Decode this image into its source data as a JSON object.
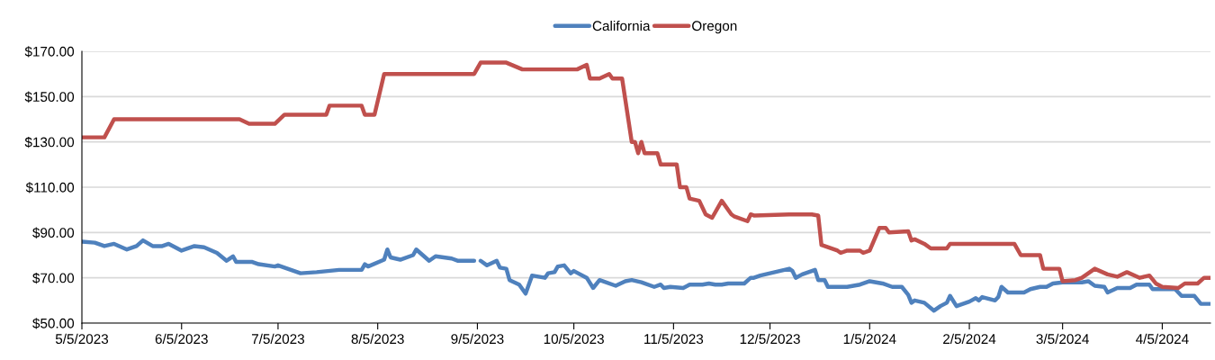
{
  "chart_data": {
    "type": "line",
    "xlim": [
      "2023-05-05",
      "2024-04-20"
    ],
    "xticks": [
      {
        "value": "2023-05-05",
        "label": "5/5/2023"
      },
      {
        "value": "2023-06-05",
        "label": "6/5/2023"
      },
      {
        "value": "2023-07-05",
        "label": "7/5/2023"
      },
      {
        "value": "2023-08-05",
        "label": "8/5/2023"
      },
      {
        "value": "2023-09-05",
        "label": "9/5/2023"
      },
      {
        "value": "2023-10-05",
        "label": "10/5/2023"
      },
      {
        "value": "2023-11-05",
        "label": "11/5/2023"
      },
      {
        "value": "2023-12-05",
        "label": "12/5/2023"
      },
      {
        "value": "2024-01-05",
        "label": "1/5/2024"
      },
      {
        "value": "2024-02-05",
        "label": "2/5/2024"
      },
      {
        "value": "2024-03-05",
        "label": "3/5/2024"
      },
      {
        "value": "2024-04-05",
        "label": "4/5/2024"
      }
    ],
    "ylim": [
      50,
      170
    ],
    "yticks": [
      {
        "value": 50,
        "label": "$50.00"
      },
      {
        "value": 70,
        "label": "$70.00"
      },
      {
        "value": 90,
        "label": "$90.00"
      },
      {
        "value": 110,
        "label": "$110.00"
      },
      {
        "value": 130,
        "label": "$130.00"
      },
      {
        "value": 150,
        "label": "$150.00"
      },
      {
        "value": 170,
        "label": "$170.00"
      }
    ],
    "grid": "y",
    "legend": "top",
    "marker": "none",
    "line_style": "solid",
    "series": [
      {
        "name": "California",
        "color": "#4f81bd",
        "x": [
          "2023-05-05",
          "2023-05-09",
          "2023-05-12",
          "2023-05-15",
          "2023-05-19",
          "2023-05-22",
          "2023-05-24",
          "2023-05-27",
          "2023-05-30",
          "2023-06-01",
          "2023-06-05",
          "2023-06-09",
          "2023-06-12",
          "2023-06-16",
          "2023-06-19",
          "2023-06-21",
          "2023-06-22",
          "2023-06-27",
          "2023-06-29",
          "2023-07-04",
          "2023-07-05",
          "2023-07-08",
          "2023-07-12",
          "2023-07-17",
          "2023-07-24",
          "2023-07-31",
          "2023-08-01",
          "2023-08-02",
          "2023-08-07",
          "2023-08-08",
          "2023-08-09",
          "2023-08-12",
          "2023-08-16",
          "2023-08-17",
          "2023-08-19",
          "2023-08-21",
          "2023-08-23",
          "2023-08-28",
          "2023-08-30",
          "2023-09-04",
          "2023-09-05",
          "2023-09-06",
          "2023-09-08",
          "2023-09-11",
          "2023-09-12",
          "2023-09-14",
          "2023-09-15",
          "2023-09-18",
          "2023-09-20",
          "2023-09-22",
          "2023-09-26",
          "2023-09-27",
          "2023-09-29",
          "2023-09-30",
          "2023-10-02",
          "2023-10-04",
          "2023-10-05",
          "2023-10-09",
          "2023-10-11",
          "2023-10-13",
          "2023-10-18",
          "2023-10-21",
          "2023-10-23",
          "2023-10-26",
          "2023-10-30",
          "2023-11-01",
          "2023-11-02",
          "2023-11-04",
          "2023-11-08",
          "2023-11-10",
          "2023-11-14",
          "2023-11-16",
          "2023-11-18",
          "2023-11-20",
          "2023-11-22",
          "2023-11-27",
          "2023-11-29",
          "2023-11-30",
          "2023-12-02",
          "2023-12-11",
          "2023-12-12",
          "2023-12-13",
          "2023-12-15",
          "2023-12-19",
          "2023-12-20",
          "2023-12-22",
          "2023-12-23",
          "2023-12-29",
          "2024-01-02",
          "2024-01-05",
          "2024-01-09",
          "2024-01-12",
          "2024-01-15",
          "2024-01-17",
          "2024-01-18",
          "2024-01-19",
          "2024-01-22",
          "2024-01-25",
          "2024-01-27",
          "2024-01-29",
          "2024-01-30",
          "2024-02-01",
          "2024-02-05",
          "2024-02-07",
          "2024-02-08",
          "2024-02-09",
          "2024-02-13",
          "2024-02-14",
          "2024-02-15",
          "2024-02-17",
          "2024-02-22",
          "2024-02-24",
          "2024-02-27",
          "2024-02-29",
          "2024-03-02",
          "2024-03-05",
          "2024-03-11",
          "2024-03-13",
          "2024-03-15",
          "2024-03-18",
          "2024-03-19",
          "2024-03-22",
          "2024-03-26",
          "2024-03-28",
          "2024-04-01",
          "2024-04-02",
          "2024-04-09",
          "2024-04-11",
          "2024-04-15",
          "2024-04-17",
          "2024-04-20"
        ],
        "values": [
          86,
          85.5,
          84,
          85,
          82.5,
          84,
          86.5,
          84,
          84,
          85,
          82,
          84,
          83.5,
          81,
          77.5,
          79.5,
          77,
          77,
          76,
          75,
          75.5,
          74,
          72,
          72.5,
          73.5,
          73.5,
          76,
          75,
          78,
          82.5,
          79,
          78,
          80,
          82.5,
          80,
          77.5,
          79.5,
          78.5,
          77.5,
          77.5,
          null,
          77.5,
          75.5,
          77.5,
          74.5,
          74,
          69,
          67,
          63,
          71,
          70,
          72,
          72.5,
          75,
          75.5,
          72,
          73,
          70,
          65.5,
          69,
          66.5,
          68.5,
          69,
          68,
          66,
          67,
          65.5,
          66,
          65.5,
          67,
          67,
          67.5,
          67,
          67,
          67.5,
          67.5,
          70,
          70,
          71,
          74,
          73,
          70,
          71.5,
          73.5,
          69,
          69,
          66,
          66,
          67,
          68.5,
          67.5,
          66,
          66,
          62.5,
          59,
          60,
          59,
          55.5,
          57.5,
          59,
          62,
          57.5,
          59.5,
          61,
          60,
          61.5,
          60,
          61.5,
          66,
          63.5,
          63.5,
          65,
          66,
          66,
          67.5,
          68,
          68,
          68.5,
          66.5,
          66,
          63.5,
          65.5,
          65.5,
          67,
          67,
          65,
          65,
          62,
          62,
          58.5,
          58.5
        ]
      },
      {
        "name": "Oregon",
        "color": "#c0504d",
        "x": [
          "2023-05-05",
          "2023-05-12",
          "2023-05-15",
          "2023-06-23",
          "2023-06-26",
          "2023-07-04",
          "2023-07-07",
          "2023-07-20",
          "2023-07-21",
          "2023-07-31",
          "2023-08-01",
          "2023-08-04",
          "2023-08-07",
          "2023-09-04",
          "2023-09-06",
          "2023-09-14",
          "2023-09-19",
          "2023-10-06",
          "2023-10-09",
          "2023-10-10",
          "2023-10-13",
          "2023-10-16",
          "2023-10-17",
          "2023-10-20",
          "2023-10-23",
          "2023-10-24",
          "2023-10-25",
          "2023-10-26",
          "2023-10-27",
          "2023-10-31",
          "2023-11-01",
          "2023-11-06",
          "2023-11-07",
          "2023-11-09",
          "2023-11-10",
          "2023-11-13",
          "2023-11-15",
          "2023-11-17",
          "2023-11-20",
          "2023-11-23",
          "2023-11-24",
          "2023-11-28",
          "2023-11-29",
          "2023-11-30",
          "2023-12-11",
          "2023-12-18",
          "2023-12-20",
          "2023-12-21",
          "2023-12-22",
          "2023-12-26",
          "2023-12-27",
          "2023-12-29",
          "2024-01-02",
          "2024-01-03",
          "2024-01-05",
          "2024-01-08",
          "2024-01-10",
          "2024-01-11",
          "2024-01-17",
          "2024-01-18",
          "2024-01-19",
          "2024-01-22",
          "2024-01-24",
          "2024-01-29",
          "2024-01-30",
          "2024-02-19",
          "2024-02-21",
          "2024-02-27",
          "2024-02-28",
          "2024-03-04",
          "2024-03-05",
          "2024-03-09",
          "2024-03-11",
          "2024-03-15",
          "2024-03-19",
          "2024-03-22",
          "2024-03-25",
          "2024-03-29",
          "2024-04-01",
          "2024-04-03",
          "2024-04-05",
          "2024-04-10",
          "2024-04-12",
          "2024-04-16",
          "2024-04-18",
          "2024-04-20"
        ],
        "values": [
          132,
          132,
          140,
          140,
          138,
          138,
          142,
          142,
          146,
          146,
          142,
          142,
          160,
          160,
          165,
          165,
          162,
          162,
          164,
          158,
          158,
          160,
          158,
          158,
          130,
          130,
          125,
          130,
          125,
          125,
          120,
          120,
          110,
          110,
          105,
          104,
          98,
          96.5,
          104,
          98,
          97,
          95,
          98,
          97.5,
          98,
          98,
          97.5,
          84.5,
          84,
          82,
          81,
          82,
          82,
          81,
          82,
          92,
          92,
          90,
          90.5,
          86.5,
          87,
          85,
          83,
          83,
          85,
          85,
          80,
          80,
          74,
          74,
          68.5,
          69,
          70,
          74,
          71.5,
          70.5,
          72.5,
          70,
          71,
          67.5,
          66,
          65.5,
          67.5,
          67.5,
          70,
          70
        ]
      }
    ]
  }
}
